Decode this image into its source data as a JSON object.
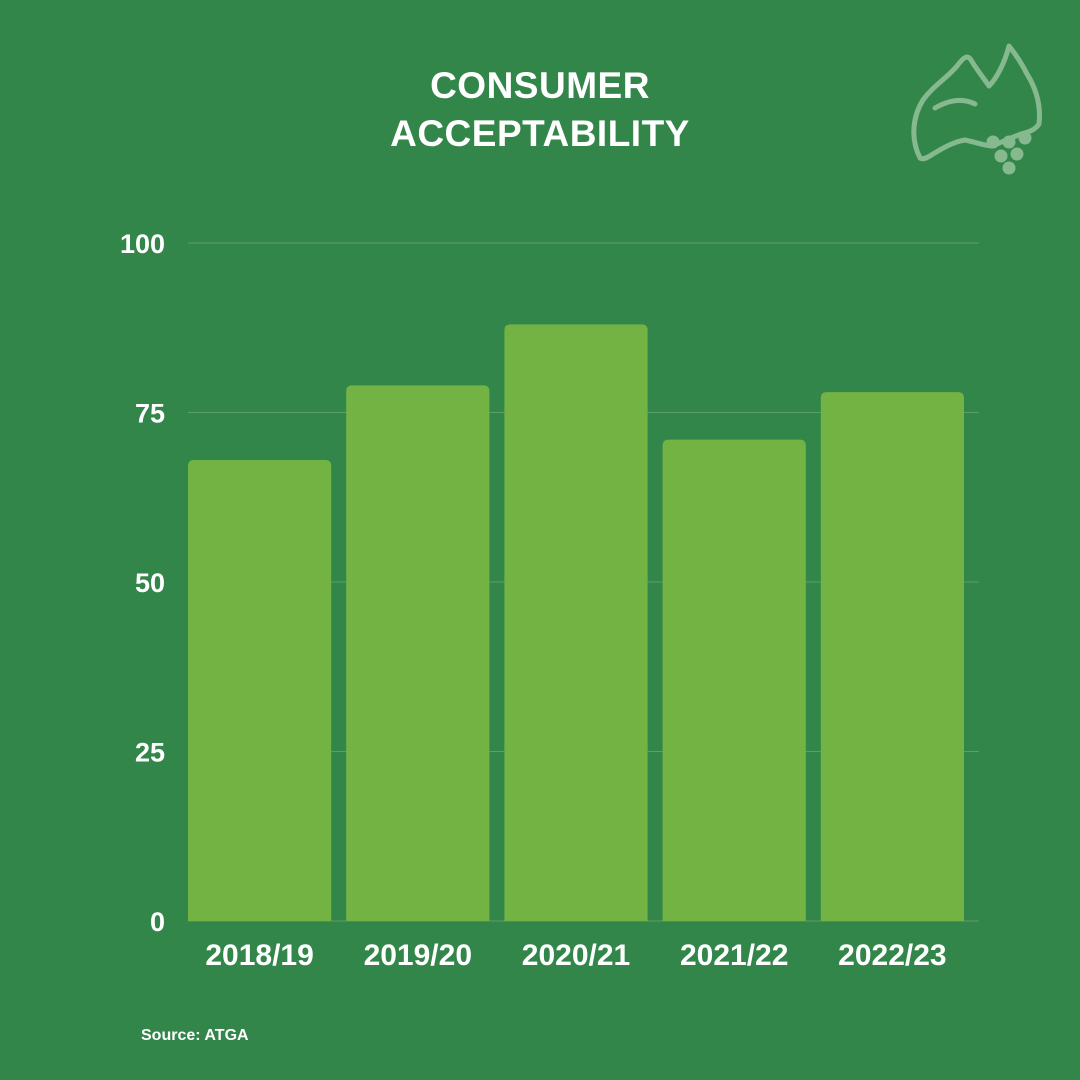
{
  "colors": {
    "background": "#33864a",
    "bar": "#72b343",
    "gridline": "#5a9e69",
    "text": "#ffffff",
    "logo": "#86b98f"
  },
  "logo": {
    "icon": "australia-grapes-logo-icon"
  },
  "source": "Source: ATGA",
  "chart_data": {
    "type": "bar",
    "title_lines": [
      "CONSUMER",
      "ACCEPTABILITY"
    ],
    "categories": [
      "2018/19",
      "2019/20",
      "2020/21",
      "2021/22",
      "2022/23"
    ],
    "values": [
      68,
      79,
      88,
      71,
      78
    ],
    "ylim": [
      0,
      100
    ],
    "yticks": [
      0,
      25,
      50,
      75,
      100
    ],
    "xlabel": "",
    "ylabel": "",
    "grid": true,
    "legend": "none"
  }
}
